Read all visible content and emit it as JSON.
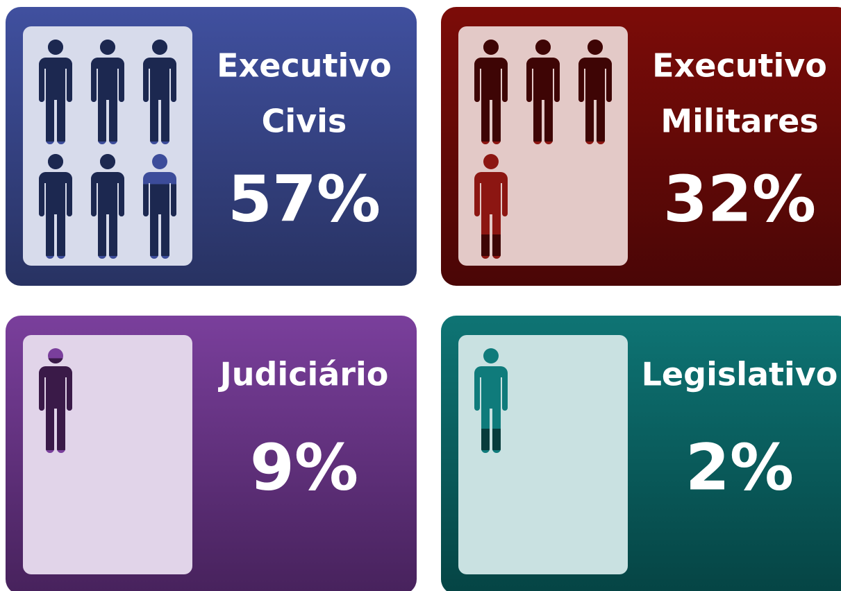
{
  "chart_data": [
    {
      "type": "pictograph",
      "title": [
        "Executivo",
        "Civis"
      ],
      "value": 57,
      "value_label": "57%",
      "unit": 10,
      "color": "#1c2850"
    },
    {
      "type": "pictograph",
      "title": [
        "Executivo",
        "Militares"
      ],
      "value": 32,
      "value_label": "32%",
      "unit": 10,
      "color": "#3e0505"
    },
    {
      "type": "pictograph",
      "title": [
        "Judiciário"
      ],
      "value": 9,
      "value_label": "9%",
      "unit": 10,
      "color": "#3a1a48"
    },
    {
      "type": "pictograph",
      "title": [
        "Legislativo"
      ],
      "value": 2,
      "value_label": "2%",
      "unit": 10,
      "color": "#083c3c"
    }
  ]
}
